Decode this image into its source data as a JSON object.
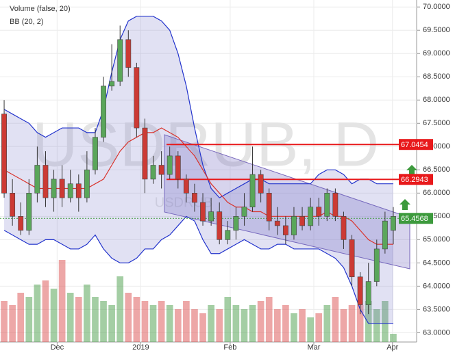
{
  "chart_data": {
    "type": "candlestick",
    "legend": [
      "Volume (false, 20)",
      "BB (20, 2)"
    ],
    "watermark": "USDRUB, D",
    "watermark_small": "USDRUB",
    "xlim": [
      -0.5,
      47.5
    ],
    "xticks": [
      {
        "value": 6.4,
        "label": "Dec"
      },
      {
        "value": 16.5,
        "label": "2019"
      },
      {
        "value": 27.3,
        "label": "Feb"
      },
      {
        "value": 37.4,
        "label": "Mar"
      },
      {
        "value": 46.9,
        "label": "Apr"
      }
    ],
    "ylim": [
      62.8,
      70.15
    ],
    "yticks": [
      {
        "value": 63,
        "label": "63.0000"
      },
      {
        "value": 63.5,
        "label": "63.5000"
      },
      {
        "value": 64,
        "label": "64.0000"
      },
      {
        "value": 64.5,
        "label": "64.5000"
      },
      {
        "value": 65,
        "label": "65.0000"
      },
      {
        "value": 65.5,
        "label": "65.5000"
      },
      {
        "value": 66,
        "label": "66.0000"
      },
      {
        "value": 66.5,
        "label": "66.5000"
      },
      {
        "value": 67,
        "label": "67.0000"
      },
      {
        "value": 67.5,
        "label": "67.5000"
      },
      {
        "value": 68,
        "label": "68.0000"
      },
      {
        "value": 68.5,
        "label": "68.5000"
      },
      {
        "value": 69,
        "label": "69.0000"
      },
      {
        "value": 69.5,
        "label": "69.5000"
      },
      {
        "value": 70,
        "label": "70.0000"
      }
    ],
    "grid": true,
    "up_color": "#5aa65a",
    "down_color": "#cc3a34",
    "open": [
      67.7,
      66.0,
      65.5,
      65.2,
      66.0,
      66.6,
      65.9,
      66.3,
      65.9,
      66.2,
      65.9,
      66.5,
      67.2,
      68.3,
      68.4,
      69.3,
      68.7,
      67.4,
      66.3,
      66.6,
      66.4,
      66.8,
      66.3,
      66.0,
      65.8,
      65.4,
      65.6,
      65.0,
      65.2,
      65.5,
      65.7,
      66.4,
      66.0,
      65.4,
      65.3,
      65.1,
      65.5,
      65.3,
      65.7,
      65.5,
      66.0,
      65.5,
      65.0,
      64.2,
      63.6,
      64.1,
      64.8,
      65.2
    ],
    "close": [
      66.0,
      65.5,
      65.2,
      66.0,
      66.6,
      65.9,
      66.3,
      65.9,
      66.2,
      65.9,
      66.5,
      67.2,
      68.3,
      68.4,
      69.3,
      68.7,
      67.4,
      66.3,
      66.6,
      66.4,
      66.8,
      66.3,
      66.0,
      65.8,
      65.4,
      65.6,
      65.0,
      65.2,
      65.5,
      65.7,
      66.4,
      66.0,
      65.4,
      65.3,
      65.1,
      65.5,
      65.3,
      65.7,
      65.5,
      66.0,
      65.5,
      65.0,
      64.2,
      63.6,
      64.1,
      64.8,
      65.4,
      65.5
    ],
    "high": [
      68.0,
      66.3,
      65.8,
      66.3,
      67.0,
      66.9,
      66.5,
      66.6,
      66.5,
      66.4,
      66.9,
      67.4,
      68.5,
      69.2,
      69.6,
      69.5,
      68.8,
      67.6,
      66.8,
      66.9,
      67.0,
      66.9,
      66.4,
      66.2,
      66.0,
      65.9,
      65.8,
      65.4,
      65.7,
      66.0,
      67.0,
      66.5,
      66.1,
      65.7,
      65.5,
      65.7,
      65.7,
      65.9,
      65.9,
      66.1,
      66.1,
      65.6,
      65.1,
      64.3,
      64.5,
      65.0,
      65.6,
      65.7
    ],
    "low": [
      65.9,
      65.3,
      65.1,
      65.1,
      65.8,
      65.7,
      65.6,
      65.7,
      65.8,
      65.6,
      65.8,
      66.4,
      67.1,
      68.2,
      68.3,
      68.5,
      67.2,
      66.0,
      66.2,
      66.1,
      66.3,
      66.1,
      65.8,
      65.6,
      65.3,
      65.3,
      64.9,
      64.9,
      65.0,
      65.3,
      65.6,
      65.8,
      65.2,
      65.1,
      64.9,
      65.0,
      65.2,
      65.2,
      65.3,
      65.4,
      65.4,
      64.8,
      64.0,
      63.4,
      63.4,
      64.0,
      64.7,
      64.9
    ],
    "volume": [
      50,
      45,
      60,
      55,
      70,
      75,
      65,
      100,
      60,
      55,
      70,
      55,
      50,
      45,
      80,
      60,
      55,
      50,
      45,
      50,
      45,
      40,
      50,
      40,
      35,
      45,
      40,
      55,
      45,
      40,
      45,
      50,
      55,
      40,
      45,
      35,
      40,
      30,
      35,
      45,
      55,
      40,
      45,
      45,
      50,
      40,
      50,
      10
    ],
    "series": [
      {
        "name": "BB upper",
        "color": "#2233cc",
        "values": [
          67.8,
          67.7,
          67.6,
          67.5,
          67.3,
          67.2,
          67.3,
          67.4,
          67.4,
          67.4,
          67.3,
          67.3,
          67.8,
          68.6,
          69.3,
          69.7,
          69.8,
          69.8,
          69.8,
          69.7,
          69.5,
          69.0,
          68.3,
          67.4,
          66.6,
          66.1,
          65.9,
          66.0,
          66.1,
          66.2,
          66.3,
          66.3,
          66.2,
          66.2,
          66.2,
          66.2,
          66.2,
          66.2,
          66.4,
          66.5,
          66.5,
          66.4,
          66.2,
          66.3,
          66.3,
          66.2,
          66.2,
          66.2
        ]
      },
      {
        "name": "BB middle",
        "color": "#d9332c",
        "values": [
          66.5,
          66.4,
          66.3,
          66.2,
          66.1,
          66.1,
          66.1,
          66.1,
          66.1,
          66.1,
          66.1,
          66.2,
          66.3,
          66.6,
          66.9,
          67.1,
          67.2,
          67.3,
          67.3,
          67.4,
          67.3,
          67.2,
          67.0,
          66.8,
          66.5,
          66.2,
          66.0,
          65.8,
          65.7,
          65.7,
          65.6,
          65.6,
          65.5,
          65.5,
          65.5,
          65.5,
          65.5,
          65.5,
          65.5,
          65.6,
          65.5,
          65.5,
          65.4,
          65.2,
          65.0,
          64.9,
          64.9,
          64.9
        ]
      },
      {
        "name": "BB lower",
        "color": "#2233cc",
        "values": [
          65.2,
          65.1,
          65.0,
          64.9,
          64.9,
          65.0,
          65.0,
          64.9,
          64.8,
          64.8,
          64.9,
          65.1,
          64.8,
          64.6,
          64.5,
          64.5,
          64.6,
          64.8,
          64.8,
          65.0,
          65.1,
          65.3,
          65.5,
          65.4,
          65.0,
          64.7,
          64.7,
          64.8,
          64.9,
          65.0,
          64.9,
          64.8,
          64.8,
          64.9,
          64.9,
          64.8,
          64.8,
          64.8,
          64.8,
          64.7,
          64.6,
          64.4,
          64.0,
          63.5,
          63.2,
          63.2,
          63.2,
          63.2
        ]
      }
    ],
    "levels": [
      {
        "value": 67.0454,
        "color": "#e8191b"
      },
      {
        "value": 66.2943,
        "color": "#e8191b"
      },
      {
        "value": 65.4568,
        "color": "#3d9a3d"
      }
    ]
  }
}
